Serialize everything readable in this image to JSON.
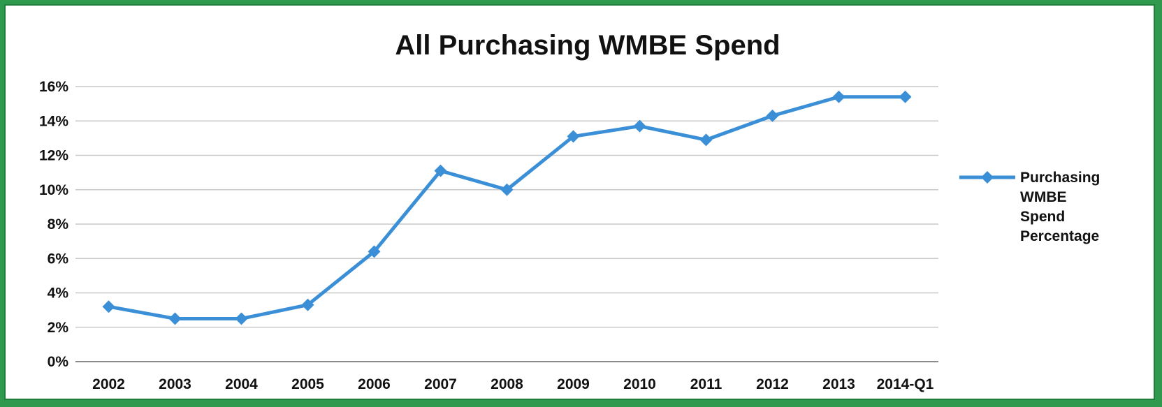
{
  "chart_data": {
    "type": "line",
    "title": "All Purchasing WMBE Spend",
    "xlabel": "",
    "ylabel": "",
    "categories": [
      "2002",
      "2003",
      "2004",
      "2005",
      "2006",
      "2007",
      "2008",
      "2009",
      "2010",
      "2011",
      "2012",
      "2013",
      "2014-Q1"
    ],
    "series": [
      {
        "name": "Purchasing WMBE Spend Percentage",
        "legend_lines": [
          "Purchasing",
          "WMBE",
          "Spend",
          "Percentage"
        ],
        "values": [
          3.2,
          2.5,
          2.5,
          3.3,
          6.4,
          11.1,
          10.0,
          13.1,
          13.7,
          12.9,
          14.3,
          15.4,
          15.4
        ],
        "color": "#3a8fd6"
      }
    ],
    "ylim": [
      0,
      16
    ],
    "yticks": [
      0,
      2,
      4,
      6,
      8,
      10,
      12,
      14,
      16
    ],
    "ytick_labels": [
      "0%",
      "2%",
      "4%",
      "6%",
      "8%",
      "10%",
      "12%",
      "14%",
      "16%"
    ],
    "grid": true,
    "legend_position": "right",
    "colors": {
      "frame_outer": "#2f9a4e",
      "background": "#ffffff",
      "grid": "#c9c9c9"
    }
  }
}
